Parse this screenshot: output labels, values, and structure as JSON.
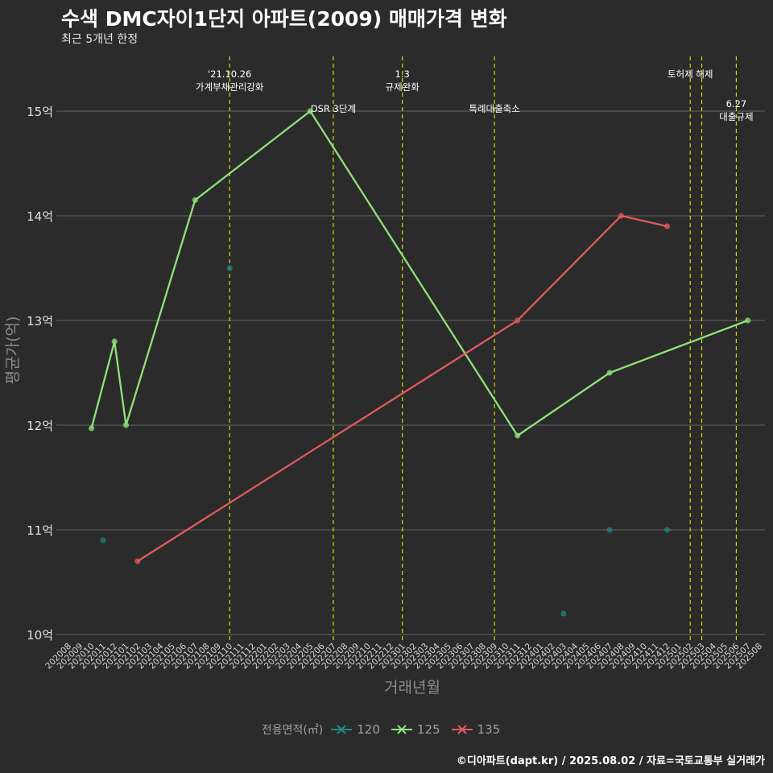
{
  "title": "수색 DMC자이1단지 아파트(2009) 매매가격 변화",
  "subtitle": "최근 5개년 한정",
  "caption": "©디아파트(dapt.kr) / 2025.08.02 / 자료=국토교통부 실거래가",
  "chart_data": {
    "type": "line",
    "title": "수색 DMC자이1단지 아파트(2009) 매매가격 변화",
    "subtitle": "최근 5개년 한정",
    "xlabel": "거래년월",
    "ylabel": "평균가(억)",
    "ylim": [
      10,
      15.4
    ],
    "yticks": [
      10,
      11,
      12,
      13,
      14,
      15
    ],
    "ytick_labels": [
      "10억",
      "11억",
      "12억",
      "13억",
      "14억",
      "15억"
    ],
    "grid": true,
    "legend_position": "bottom",
    "legend_title": "전용면적(㎡)",
    "categories": [
      "202008",
      "202009",
      "202010",
      "202011",
      "202012",
      "202101",
      "202102",
      "202103",
      "202104",
      "202105",
      "202106",
      "202107",
      "202108",
      "202109",
      "202110",
      "202111",
      "202112",
      "202201",
      "202202",
      "202203",
      "202204",
      "202205",
      "202206",
      "202207",
      "202208",
      "202209",
      "202210",
      "202211",
      "202212",
      "202301",
      "202302",
      "202303",
      "202304",
      "202305",
      "202306",
      "202307",
      "202308",
      "202309",
      "202310",
      "202311",
      "202312",
      "202401",
      "202402",
      "202403",
      "202404",
      "202405",
      "202406",
      "202407",
      "202408",
      "202409",
      "202410",
      "202411",
      "202412",
      "202501",
      "202502",
      "202503",
      "202504",
      "202505",
      "202506",
      "202507",
      "202508"
    ],
    "series": [
      {
        "name": "120",
        "color": "#1f8a85",
        "line": false,
        "points": [
          [
            "202011",
            10.9
          ],
          [
            "202110",
            13.5
          ],
          [
            "202403",
            10.2
          ],
          [
            "202407",
            11.0
          ],
          [
            "202412",
            11.0
          ]
        ]
      },
      {
        "name": "125",
        "color": "#90e07a",
        "line": true,
        "points": [
          [
            "202010",
            11.97
          ],
          [
            "202012",
            12.8
          ],
          [
            "202101",
            12.0
          ],
          [
            "202107",
            14.15
          ],
          [
            "202205",
            15.0
          ],
          [
            "202311",
            11.9
          ],
          [
            "202407",
            12.5
          ],
          [
            "202507",
            13.0
          ]
        ]
      },
      {
        "name": "135",
        "color": "#e05a5a",
        "line": true,
        "points": [
          [
            "202102",
            10.7
          ],
          [
            "202311",
            13.0
          ],
          [
            "202408",
            14.0
          ],
          [
            "202412",
            13.9
          ]
        ]
      }
    ],
    "events": [
      {
        "x": "202110",
        "label": "'21.10.26\n가계부채관리강화",
        "row": 0
      },
      {
        "x": "202207",
        "label": "DSR 3단계",
        "row": 1
      },
      {
        "x": "202301",
        "label": "1.3\n규제완화",
        "row": 0
      },
      {
        "x": "202309",
        "label": "특례대출축소",
        "row": 1
      },
      {
        "x": "202502",
        "label": "토허제 해제",
        "row": 0
      },
      {
        "x": "202503",
        "label": "",
        "row": 0
      },
      {
        "x": "202506",
        "label": "6.27\n대출규제",
        "row": 2
      }
    ]
  }
}
